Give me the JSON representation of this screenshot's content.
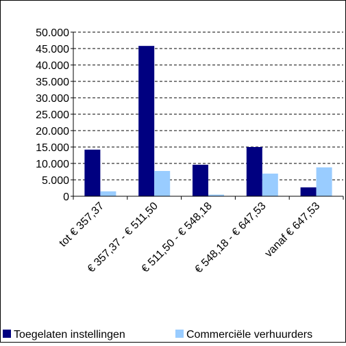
{
  "chart_data": {
    "type": "bar",
    "categories": [
      "tot € 357,37",
      "€ 357,37 - € 511,50",
      "€ 511,50 - € 548,18",
      "€ 548,18 - € 647,53",
      "vanaf € 647,53"
    ],
    "series": [
      {
        "name": "Toegelaten instellingen",
        "color": "#000080",
        "values": [
          14200,
          45800,
          9600,
          15000,
          2700
        ]
      },
      {
        "name": "Commerciële verhuurders",
        "color": "#99ccff",
        "values": [
          1500,
          7700,
          500,
          6900,
          8800
        ]
      }
    ],
    "ylim": [
      0,
      50000
    ],
    "yticks": [
      0,
      {
        "value": 5000,
        "label": "5.000"
      },
      {
        "value": 10000,
        "label": "10.000"
      },
      {
        "value": 15000,
        "label": "15.000"
      },
      {
        "value": 20000,
        "label": "20.000"
      },
      {
        "value": 25000,
        "label": "25.000"
      },
      {
        "value": 30000,
        "label": "30.000"
      },
      {
        "value": 35000,
        "label": "35.000"
      },
      {
        "value": 40000,
        "label": "40.000"
      },
      {
        "value": 45000,
        "label": "45.000"
      },
      {
        "value": 50000,
        "label": "50.000"
      }
    ],
    "grid": true,
    "legend": "bottom"
  }
}
